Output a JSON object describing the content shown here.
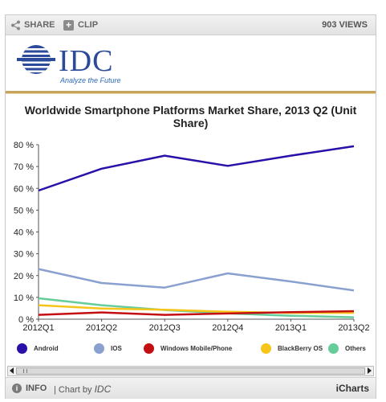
{
  "toolbar": {
    "share_label": "SHARE",
    "clip_label": "CLIP",
    "views_label": "903 VIEWS"
  },
  "logo": {
    "text": "IDC",
    "tagline": "Analyze the Future"
  },
  "footer": {
    "info_label": "INFO",
    "chart_by_label": "| Chart by",
    "chart_by_brand": "IDC",
    "brand_right": "iCharts"
  },
  "chart_data": {
    "type": "line",
    "title": "Worldwide Smartphone Platforms Market Share, 2013 Q2 (Unit Share)",
    "xlabel": "",
    "ylabel": "",
    "categories": [
      "2012Q1",
      "2012Q2",
      "2012Q3",
      "2012Q4",
      "2013Q1",
      "2013Q2"
    ],
    "ylim": [
      0,
      80
    ],
    "yticks": [
      "0 %",
      "10 %",
      "20 %",
      "30 %",
      "40 %",
      "50 %",
      "60 %",
      "70 %",
      "80 %"
    ],
    "grid": false,
    "legend_position": "bottom",
    "series": [
      {
        "name": "Android",
        "color": "#2a0fa8",
        "values": [
          59,
          69,
          75,
          70.3,
          75,
          79.3
        ]
      },
      {
        "name": "IOS",
        "color": "#8aa0cf",
        "values": [
          23,
          16.6,
          14.5,
          21,
          17.3,
          13.2
        ]
      },
      {
        "name": "Windows Mobile/Phone",
        "color": "#c40f12",
        "values": [
          2,
          3.1,
          2,
          2.6,
          3.2,
          3.7
        ]
      },
      {
        "name": "BlackBerry OS",
        "color": "#f7c51a",
        "values": [
          6.4,
          4.9,
          4.3,
          3.4,
          2.9,
          2.9
        ]
      },
      {
        "name": "Others",
        "color": "#66cc99",
        "values": [
          9.6,
          6.4,
          4.2,
          2.7,
          1.6,
          0.9
        ]
      }
    ]
  }
}
